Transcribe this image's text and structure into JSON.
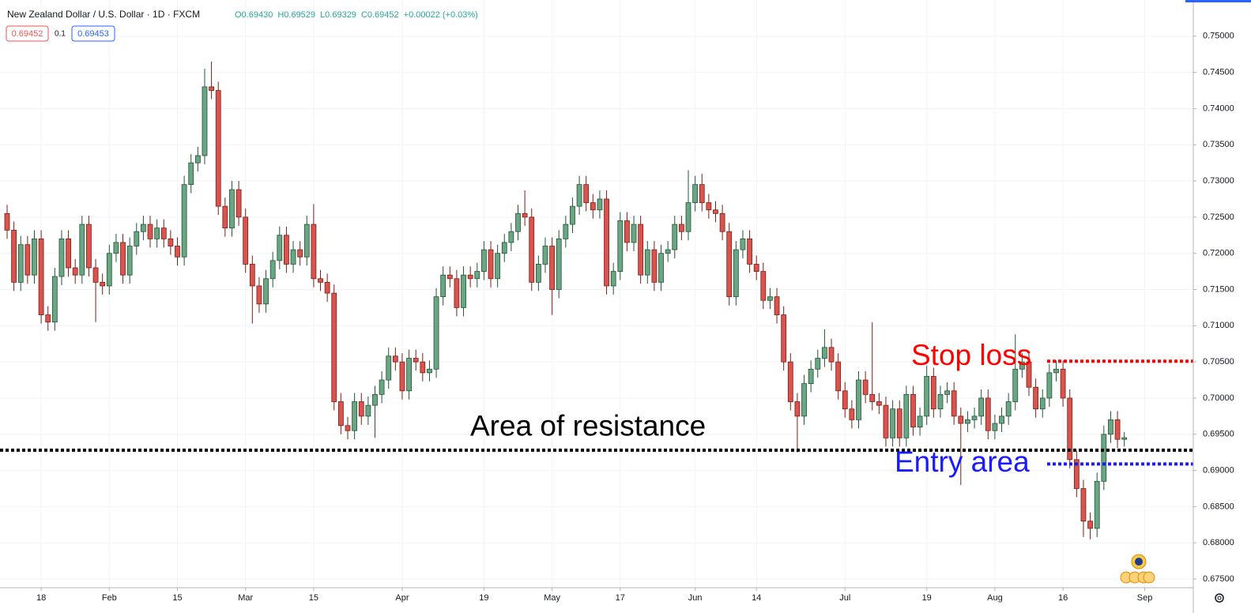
{
  "chart_data": {
    "type": "candlestick",
    "title": "New Zealand Dollar / U.S. Dollar · 1D · FXCM",
    "ohlc_labels": [
      "O0.69430",
      "H0.69529",
      "L0.69329",
      "C0.69452",
      "+0.00022 (+0.03%)"
    ],
    "bid": "0.69452",
    "spread": "0.1",
    "ask": "0.69453",
    "up_color": "#6aa584",
    "down_color": "#d9534f",
    "open": [
      0.7255,
      0.7232,
      0.716,
      0.7212,
      0.717,
      0.722,
      0.7115,
      0.7105,
      0.7168,
      0.722,
      0.718,
      0.717,
      0.724,
      0.718,
      0.716,
      0.7155,
      0.72,
      0.7215,
      0.717,
      0.721,
      0.723,
      0.724,
      0.722,
      0.7235,
      0.722,
      0.721,
      0.7195,
      0.7295,
      0.7325,
      0.7335,
      0.743,
      0.7425,
      0.7265,
      0.7235,
      0.7288,
      0.725,
      0.7185,
      0.7155,
      0.713,
      0.7165,
      0.719,
      0.7225,
      0.7185,
      0.7205,
      0.7195,
      0.724,
      0.7165,
      0.716,
      0.7145,
      0.6995,
      0.6962,
      0.6955,
      0.6995,
      0.6975,
      0.699,
      0.7005,
      0.7025,
      0.7058,
      0.705,
      0.701,
      0.7055,
      0.705,
      0.7035,
      0.704,
      0.714,
      0.717,
      0.7165,
      0.7125,
      0.717,
      0.7165,
      0.7175,
      0.7205,
      0.7165,
      0.72,
      0.7215,
      0.723,
      0.7255,
      0.725,
      0.716,
      0.7185,
      0.721,
      0.715,
      0.722,
      0.724,
      0.7265,
      0.7295,
      0.727,
      0.726,
      0.7275,
      0.7155,
      0.7175,
      0.7245,
      0.7215,
      0.724,
      0.717,
      0.7205,
      0.716,
      0.72,
      0.7205,
      0.724,
      0.723,
      0.727,
      0.7295,
      0.727,
      0.726,
      0.7255,
      0.723,
      0.714,
      0.7205,
      0.722,
      0.7185,
      0.7175,
      0.7135,
      0.714,
      0.7115,
      0.705,
      0.6995,
      0.6975,
      0.702,
      0.704,
      0.7055,
      0.707,
      0.705,
      0.701,
      0.6985,
      0.697,
      0.7025,
      0.7005,
      0.6995,
      0.699,
      0.6945,
      0.6985,
      0.6945,
      0.7005,
      0.696,
      0.6975,
      0.703,
      0.6985,
      0.7005,
      0.701,
      0.6975,
      0.6965,
      0.697,
      0.6975,
      0.7,
      0.6955,
      0.6965,
      0.6975,
      0.6995,
      0.704,
      0.705,
      0.7015,
      0.6985,
      0.7,
      0.7035,
      0.704,
      0.7,
      0.6915,
      0.6875,
      0.683,
      0.682,
      0.6885,
      0.695,
      0.697,
      0.6943
    ],
    "high": [
      0.7267,
      0.7244,
      0.7224,
      0.7224,
      0.7232,
      0.7232,
      0.7127,
      0.718,
      0.7232,
      0.7232,
      0.7192,
      0.7252,
      0.7252,
      0.7192,
      0.7172,
      0.7212,
      0.7227,
      0.7227,
      0.7222,
      0.7242,
      0.7252,
      0.7252,
      0.7247,
      0.7247,
      0.7232,
      0.7222,
      0.7307,
      0.7337,
      0.7347,
      0.7455,
      0.7465,
      0.7437,
      0.7277,
      0.73,
      0.73,
      0.7262,
      0.7197,
      0.7167,
      0.7177,
      0.7202,
      0.7237,
      0.7237,
      0.7217,
      0.7217,
      0.7252,
      0.7268,
      0.7177,
      0.7172,
      0.7157,
      0.7007,
      0.6974,
      0.7007,
      0.7007,
      0.7002,
      0.7017,
      0.7037,
      0.707,
      0.707,
      0.7062,
      0.7067,
      0.7067,
      0.7062,
      0.7052,
      0.7152,
      0.7182,
      0.7182,
      0.7177,
      0.7182,
      0.7182,
      0.7187,
      0.7217,
      0.7217,
      0.7212,
      0.7227,
      0.7242,
      0.7267,
      0.7287,
      0.7262,
      0.7197,
      0.7222,
      0.7222,
      0.7232,
      0.7252,
      0.7277,
      0.7307,
      0.7307,
      0.7282,
      0.7287,
      0.7287,
      0.7187,
      0.7257,
      0.7257,
      0.7252,
      0.7252,
      0.7217,
      0.7217,
      0.7212,
      0.7217,
      0.7252,
      0.7252,
      0.7315,
      0.7307,
      0.731,
      0.7282,
      0.7272,
      0.7267,
      0.7242,
      0.7217,
      0.7232,
      0.7232,
      0.7197,
      0.7187,
      0.7152,
      0.7152,
      0.7127,
      0.7062,
      0.7007,
      0.7032,
      0.7052,
      0.7067,
      0.7095,
      0.7082,
      0.7062,
      0.7022,
      0.6997,
      0.7037,
      0.7037,
      0.7105,
      0.7007,
      0.7002,
      0.6997,
      0.6997,
      0.7017,
      0.7017,
      0.6987,
      0.7045,
      0.7042,
      0.7017,
      0.7022,
      0.7022,
      0.6987,
      0.6982,
      0.6987,
      0.7012,
      0.7012,
      0.6977,
      0.6987,
      0.7007,
      0.7088,
      0.7062,
      0.7062,
      0.7027,
      0.7012,
      0.7047,
      0.7052,
      0.7052,
      0.7012,
      0.6927,
      0.6887,
      0.6842,
      0.6897,
      0.6962,
      0.6982,
      0.6982,
      0.69529
    ],
    "low": [
      0.722,
      0.7148,
      0.7148,
      0.7158,
      0.7158,
      0.7103,
      0.7093,
      0.7093,
      0.7156,
      0.7168,
      0.7158,
      0.7158,
      0.7168,
      0.7105,
      0.7143,
      0.7143,
      0.7188,
      0.7158,
      0.7158,
      0.7198,
      0.7218,
      0.7208,
      0.7208,
      0.7208,
      0.7198,
      0.7183,
      0.7183,
      0.7283,
      0.7313,
      0.7323,
      0.7413,
      0.7253,
      0.7223,
      0.7223,
      0.7238,
      0.7173,
      0.7103,
      0.7118,
      0.7118,
      0.7153,
      0.7178,
      0.7173,
      0.7173,
      0.7183,
      0.7183,
      0.7153,
      0.7148,
      0.7133,
      0.6983,
      0.695,
      0.6943,
      0.6943,
      0.6963,
      0.6963,
      0.6945,
      0.6993,
      0.7013,
      0.7038,
      0.6998,
      0.6998,
      0.7038,
      0.7023,
      0.7023,
      0.7028,
      0.7128,
      0.7153,
      0.7113,
      0.7113,
      0.7153,
      0.7153,
      0.7163,
      0.7153,
      0.7153,
      0.7188,
      0.7203,
      0.7218,
      0.7238,
      0.7148,
      0.7148,
      0.7173,
      0.7115,
      0.7138,
      0.7208,
      0.7228,
      0.7253,
      0.7258,
      0.7248,
      0.7248,
      0.7143,
      0.7143,
      0.7163,
      0.7203,
      0.7203,
      0.7158,
      0.7158,
      0.7148,
      0.7148,
      0.7188,
      0.7193,
      0.7218,
      0.7218,
      0.7258,
      0.7258,
      0.7248,
      0.7243,
      0.7218,
      0.7128,
      0.7128,
      0.7193,
      0.7173,
      0.7163,
      0.7123,
      0.7123,
      0.7103,
      0.7038,
      0.6983,
      0.6925,
      0.6963,
      0.7008,
      0.7028,
      0.7043,
      0.7038,
      0.6998,
      0.6973,
      0.6958,
      0.6958,
      0.6993,
      0.6983,
      0.6978,
      0.6933,
      0.6933,
      0.6933,
      0.6933,
      0.6948,
      0.6948,
      0.6963,
      0.6973,
      0.6973,
      0.6993,
      0.6963,
      0.688,
      0.6953,
      0.6958,
      0.6963,
      0.6943,
      0.6943,
      0.6953,
      0.6963,
      0.6983,
      0.7028,
      0.7003,
      0.6973,
      0.6973,
      0.6988,
      0.7023,
      0.6988,
      0.6903,
      0.6863,
      0.6808,
      0.6805,
      0.6808,
      0.6873,
      0.6938,
      0.6931,
      0.69329
    ],
    "close": [
      0.7232,
      0.716,
      0.7212,
      0.717,
      0.722,
      0.7115,
      0.7105,
      0.7168,
      0.722,
      0.718,
      0.717,
      0.724,
      0.718,
      0.716,
      0.7155,
      0.72,
      0.7215,
      0.717,
      0.721,
      0.723,
      0.724,
      0.722,
      0.7235,
      0.722,
      0.721,
      0.7195,
      0.7295,
      0.7325,
      0.7335,
      0.743,
      0.7425,
      0.7265,
      0.7235,
      0.7288,
      0.725,
      0.7185,
      0.7155,
      0.713,
      0.7165,
      0.719,
      0.7225,
      0.7185,
      0.7205,
      0.7195,
      0.724,
      0.7165,
      0.716,
      0.7145,
      0.6995,
      0.6962,
      0.6955,
      0.6995,
      0.6975,
      0.699,
      0.7005,
      0.7025,
      0.7058,
      0.705,
      0.701,
      0.7055,
      0.705,
      0.7035,
      0.704,
      0.714,
      0.717,
      0.7165,
      0.7125,
      0.717,
      0.7165,
      0.7175,
      0.7205,
      0.7165,
      0.72,
      0.7215,
      0.723,
      0.7255,
      0.725,
      0.716,
      0.7185,
      0.721,
      0.715,
      0.722,
      0.724,
      0.7265,
      0.7295,
      0.727,
      0.726,
      0.7275,
      0.7155,
      0.7175,
      0.7245,
      0.7215,
      0.724,
      0.717,
      0.7205,
      0.716,
      0.72,
      0.7205,
      0.724,
      0.723,
      0.727,
      0.7295,
      0.727,
      0.726,
      0.7255,
      0.723,
      0.714,
      0.7205,
      0.722,
      0.7185,
      0.7175,
      0.7135,
      0.714,
      0.7115,
      0.705,
      0.6995,
      0.6975,
      0.702,
      0.704,
      0.7055,
      0.707,
      0.705,
      0.701,
      0.6985,
      0.697,
      0.7025,
      0.7005,
      0.6995,
      0.699,
      0.6945,
      0.6985,
      0.6945,
      0.7005,
      0.696,
      0.6975,
      0.703,
      0.6985,
      0.7005,
      0.701,
      0.6975,
      0.6965,
      0.697,
      0.6975,
      0.7,
      0.6955,
      0.6965,
      0.6975,
      0.6995,
      0.704,
      0.705,
      0.7015,
      0.6985,
      0.7,
      0.7035,
      0.704,
      0.7,
      0.6915,
      0.6875,
      0.683,
      0.682,
      0.6885,
      0.695,
      0.697,
      0.6943,
      0.69452
    ],
    "xticks": [
      {
        "value": 5,
        "label": "18"
      },
      {
        "value": 15,
        "label": "Feb"
      },
      {
        "value": 25,
        "label": "15"
      },
      {
        "value": 35,
        "label": "Mar"
      },
      {
        "value": 45,
        "label": "15"
      },
      {
        "value": 58,
        "label": "Apr"
      },
      {
        "value": 70,
        "label": "19"
      },
      {
        "value": 80,
        "label": "May"
      },
      {
        "value": 90,
        "label": "17"
      },
      {
        "value": 101,
        "label": "Jun"
      },
      {
        "value": 110,
        "label": "14"
      },
      {
        "value": 123,
        "label": "Jul"
      },
      {
        "value": 135,
        "label": "19"
      },
      {
        "value": 145,
        "label": "Aug"
      },
      {
        "value": 155,
        "label": "16"
      },
      {
        "value": 167,
        "label": "Sep"
      }
    ],
    "ylim": [
      0.6738,
      0.755
    ],
    "yticks": [
      {
        "value": 0.675,
        "label": "0.67500"
      },
      {
        "value": 0.68,
        "label": "0.68000"
      },
      {
        "value": 0.685,
        "label": "0.68500"
      },
      {
        "value": 0.69,
        "label": "0.69000"
      },
      {
        "value": 0.695,
        "label": "0.69500"
      },
      {
        "value": 0.7,
        "label": "0.70000"
      },
      {
        "value": 0.705,
        "label": "0.70500"
      },
      {
        "value": 0.71,
        "label": "0.71000"
      },
      {
        "value": 0.715,
        "label": "0.71500"
      },
      {
        "value": 0.72,
        "label": "0.72000"
      },
      {
        "value": 0.725,
        "label": "0.72500"
      },
      {
        "value": 0.73,
        "label": "0.73000"
      },
      {
        "value": 0.735,
        "label": "0.73500"
      },
      {
        "value": 0.74,
        "label": "0.74000"
      },
      {
        "value": 0.745,
        "label": "0.74500"
      },
      {
        "value": 0.75,
        "label": "0.75000"
      }
    ],
    "grid": true,
    "annotations": [
      {
        "text": "Area of resistance",
        "value": 0.6928,
        "color": "#000000"
      },
      {
        "text": "Stop loss",
        "value": 0.7051,
        "color": "#ff0000"
      },
      {
        "text": "Entry area",
        "value": 0.6909,
        "color": "#1a1aff"
      }
    ]
  }
}
